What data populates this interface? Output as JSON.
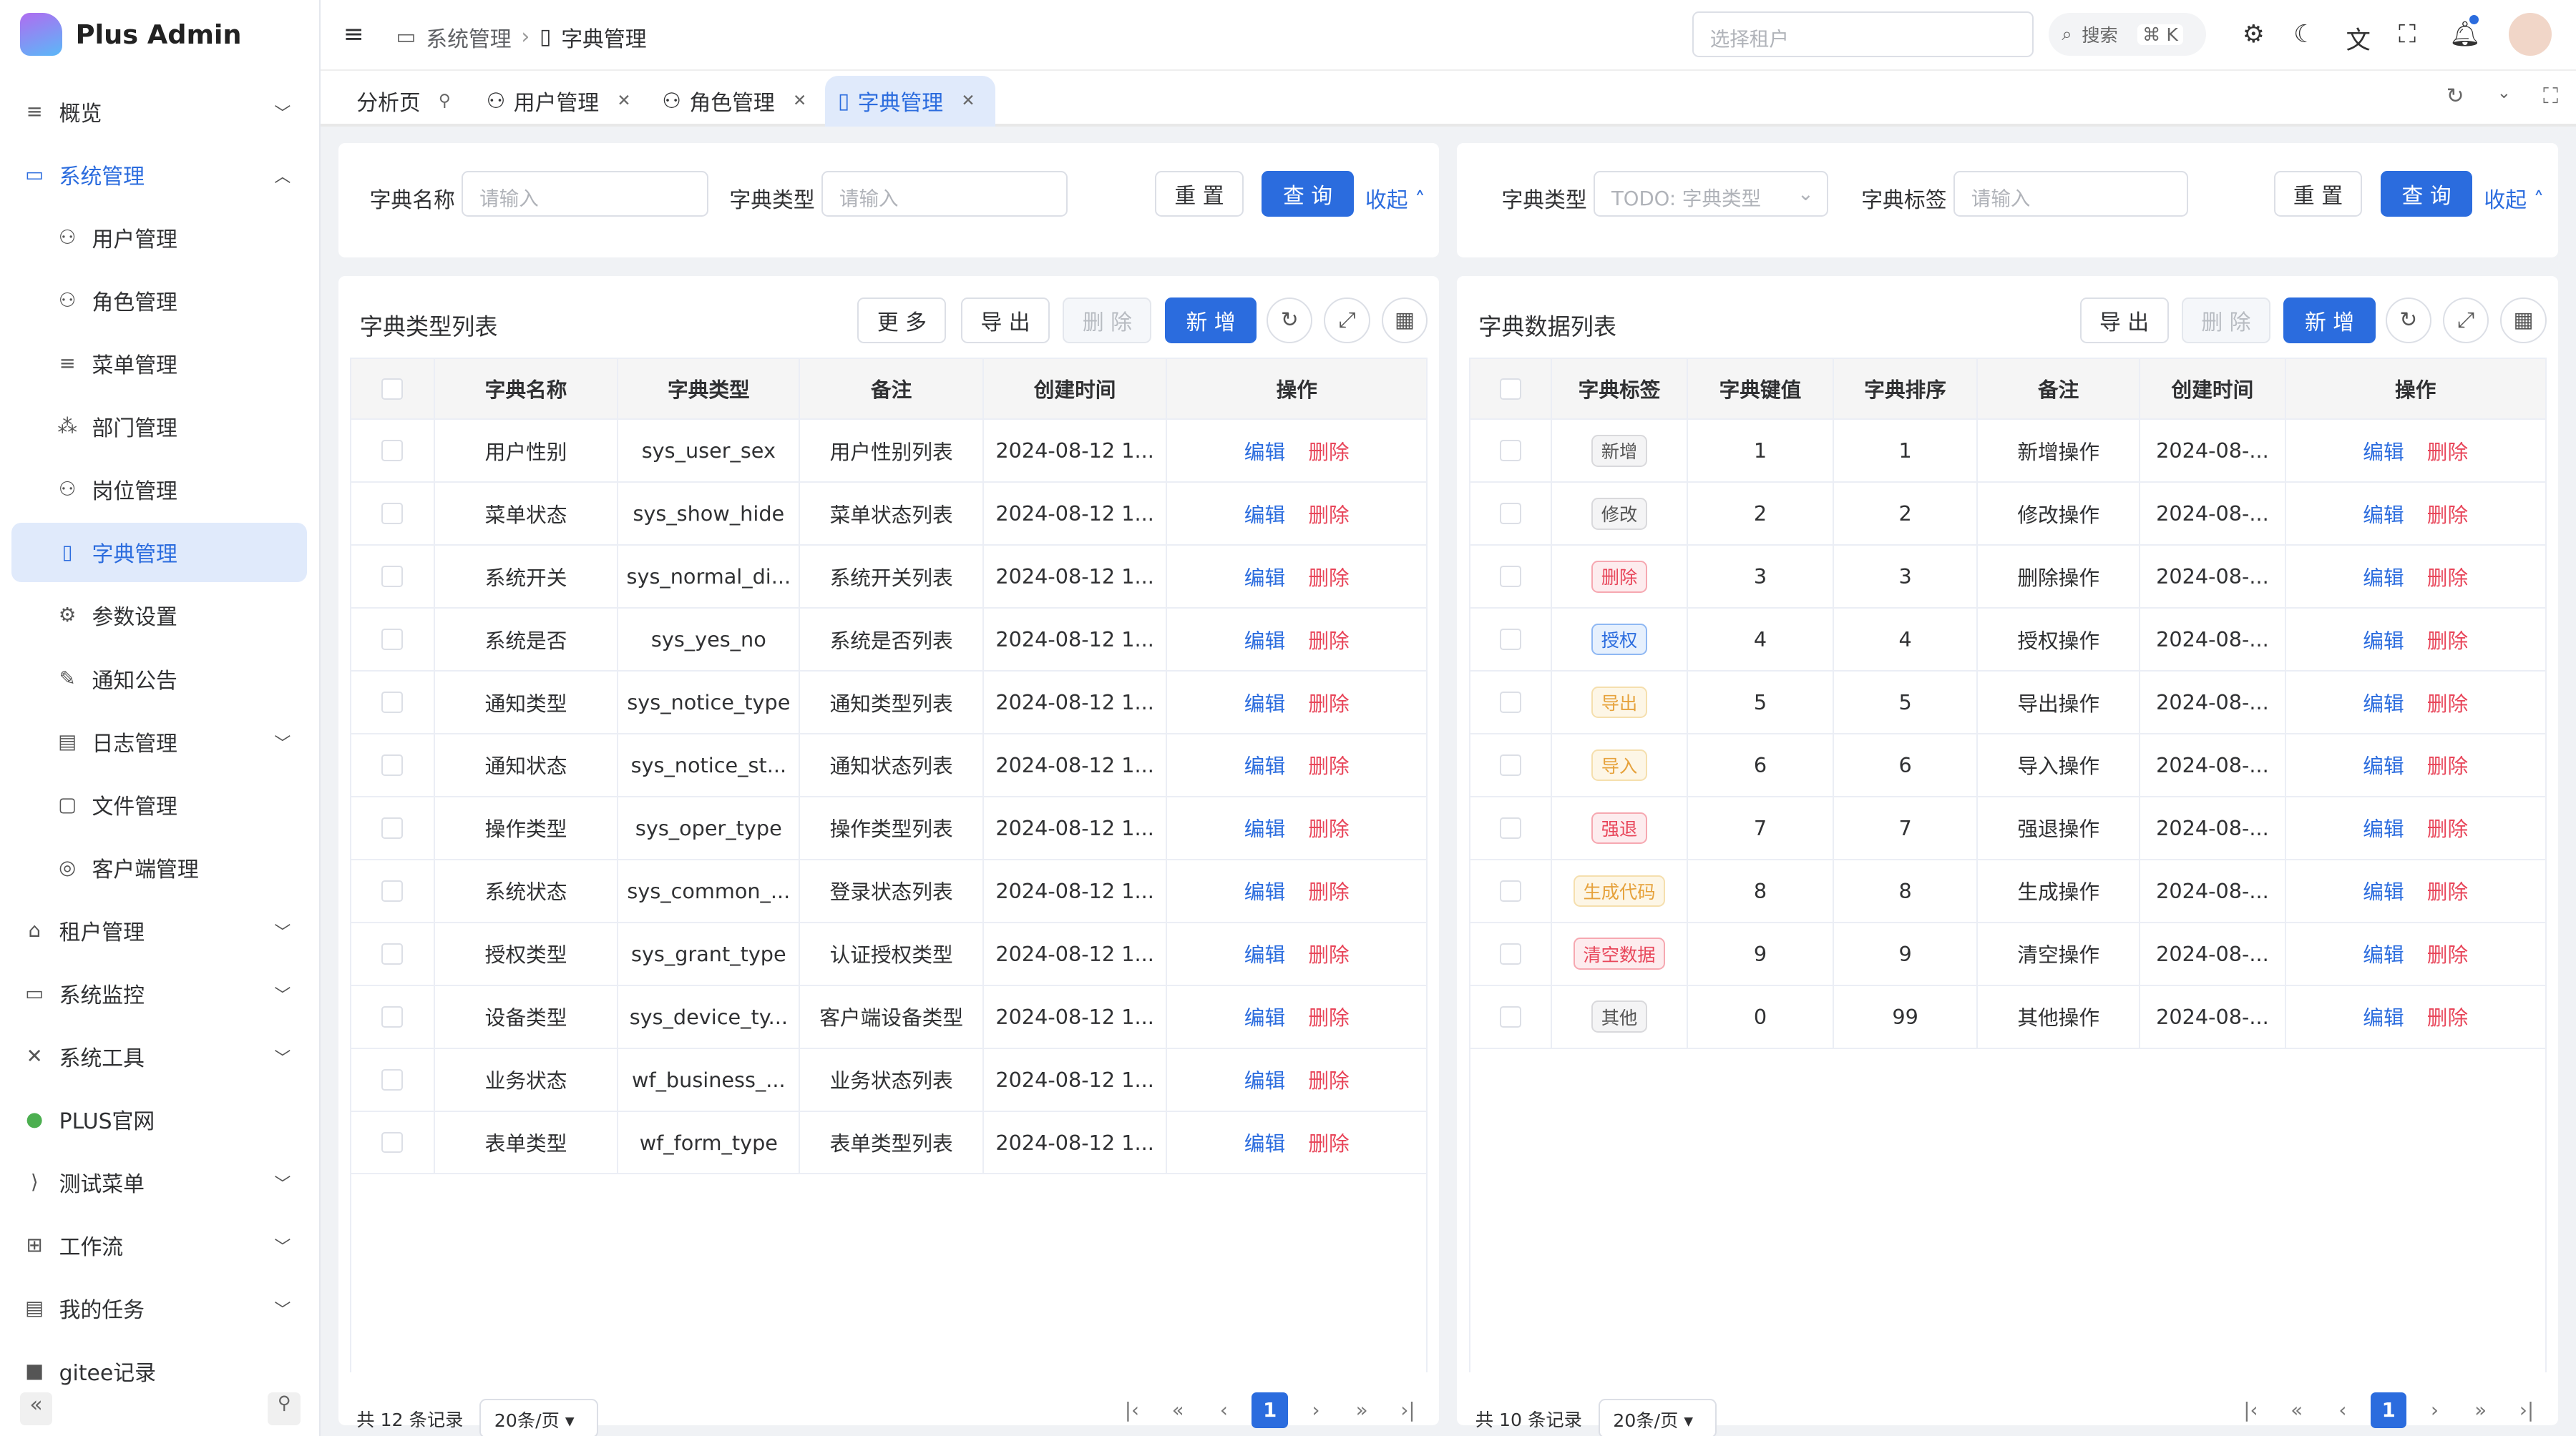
{
  "app": {
    "name": "Plus Admin"
  },
  "sidebar": {
    "items": [
      {
        "label": "概览",
        "icon": "list-icon",
        "chevron": "down"
      },
      {
        "label": "系统管理",
        "icon": "monitor-icon",
        "chevron": "up",
        "open": true
      },
      {
        "label": "用户管理",
        "icon": "user-icon",
        "sub": true
      },
      {
        "label": "角色管理",
        "icon": "role-icon",
        "sub": true
      },
      {
        "label": "菜单管理",
        "icon": "menu-icon",
        "sub": true
      },
      {
        "label": "部门管理",
        "icon": "dept-icon",
        "sub": true
      },
      {
        "label": "岗位管理",
        "icon": "post-icon",
        "sub": true
      },
      {
        "label": "字典管理",
        "icon": "dict-icon",
        "sub": true,
        "active": true
      },
      {
        "label": "参数设置",
        "icon": "settings-icon",
        "sub": true
      },
      {
        "label": "通知公告",
        "icon": "notice-icon",
        "sub": true
      },
      {
        "label": "日志管理",
        "icon": "log-icon",
        "sub": true,
        "chevron": "down"
      },
      {
        "label": "文件管理",
        "icon": "file-icon",
        "sub": true
      },
      {
        "label": "客户端管理",
        "icon": "client-icon",
        "sub": true
      },
      {
        "label": "租户管理",
        "icon": "home-icon",
        "chevron": "down"
      },
      {
        "label": "系统监控",
        "icon": "monitor-icon",
        "chevron": "down"
      },
      {
        "label": "系统工具",
        "icon": "tools-icon",
        "chevron": "down"
      },
      {
        "label": "PLUS官网",
        "icon": "plus-circle-icon"
      },
      {
        "label": "测试菜单",
        "icon": "vscode-icon",
        "chevron": "down"
      },
      {
        "label": "工作流",
        "icon": "workflow-icon",
        "chevron": "down"
      },
      {
        "label": "我的任务",
        "icon": "task-icon",
        "chevron": "down"
      },
      {
        "label": "gitee记录",
        "icon": "gitee-icon"
      }
    ]
  },
  "header": {
    "breadcrumb": [
      "系统管理",
      "字典管理"
    ],
    "tenant_placeholder": "选择租户",
    "search_label": "搜索",
    "search_shortcut": "⌘ K"
  },
  "tabs": [
    {
      "label": "分析页",
      "icon": "pin-icon"
    },
    {
      "label": "用户管理",
      "closable": true
    },
    {
      "label": "角色管理",
      "closable": true
    },
    {
      "label": "字典管理",
      "closable": true,
      "active": true
    }
  ],
  "left": {
    "search": {
      "name_label": "字典名称",
      "name_placeholder": "请输入",
      "type_label": "字典类型",
      "type_placeholder": "请输入",
      "reset": "重 置",
      "query": "查 询",
      "collapse": "收起"
    },
    "title": "字典类型列表",
    "toolbar": {
      "more": "更 多",
      "export": "导 出",
      "delete": "删 除",
      "add": "新 增"
    },
    "columns": [
      "字典名称",
      "字典类型",
      "备注",
      "创建时间",
      "操作"
    ],
    "rows": [
      [
        "用户性别",
        "sys_user_sex",
        "用户性别列表",
        "2024-08-12 1..."
      ],
      [
        "菜单状态",
        "sys_show_hide",
        "菜单状态列表",
        "2024-08-12 1..."
      ],
      [
        "系统开关",
        "sys_normal_di...",
        "系统开关列表",
        "2024-08-12 1..."
      ],
      [
        "系统是否",
        "sys_yes_no",
        "系统是否列表",
        "2024-08-12 1..."
      ],
      [
        "通知类型",
        "sys_notice_type",
        "通知类型列表",
        "2024-08-12 1..."
      ],
      [
        "通知状态",
        "sys_notice_st...",
        "通知状态列表",
        "2024-08-12 1..."
      ],
      [
        "操作类型",
        "sys_oper_type",
        "操作类型列表",
        "2024-08-12 1..."
      ],
      [
        "系统状态",
        "sys_common_...",
        "登录状态列表",
        "2024-08-12 1..."
      ],
      [
        "授权类型",
        "sys_grant_type",
        "认证授权类型",
        "2024-08-12 1..."
      ],
      [
        "设备类型",
        "sys_device_ty...",
        "客户端设备类型",
        "2024-08-12 1..."
      ],
      [
        "业务状态",
        "wf_business_...",
        "业务状态列表",
        "2024-08-12 1..."
      ],
      [
        "表单类型",
        "wf_form_type",
        "表单类型列表",
        "2024-08-12 1..."
      ]
    ],
    "edit": "编辑",
    "remove": "删除",
    "pagination": {
      "total": "共 12 条记录",
      "size": "20条/页",
      "page": "1"
    }
  },
  "right": {
    "search": {
      "type_label": "字典类型",
      "type_value": "TODO: 字典类型",
      "label_label": "字典标签",
      "label_placeholder": "请输入",
      "reset": "重 置",
      "query": "查 询",
      "collapse": "收起"
    },
    "title": "字典数据列表",
    "toolbar": {
      "export": "导 出",
      "delete": "删 除",
      "add": "新 增"
    },
    "columns": [
      "字典标签",
      "字典键值",
      "字典排序",
      "备注",
      "创建时间",
      "操作"
    ],
    "rows": [
      {
        "tag": "新增",
        "tone": "default",
        "value": "1",
        "sort": "1",
        "remark": "新增操作",
        "time": "2024-08-..."
      },
      {
        "tag": "修改",
        "tone": "default",
        "value": "2",
        "sort": "2",
        "remark": "修改操作",
        "time": "2024-08-..."
      },
      {
        "tag": "删除",
        "tone": "danger",
        "value": "3",
        "sort": "3",
        "remark": "删除操作",
        "time": "2024-08-..."
      },
      {
        "tag": "授权",
        "tone": "primary",
        "value": "4",
        "sort": "4",
        "remark": "授权操作",
        "time": "2024-08-..."
      },
      {
        "tag": "导出",
        "tone": "warning",
        "value": "5",
        "sort": "5",
        "remark": "导出操作",
        "time": "2024-08-..."
      },
      {
        "tag": "导入",
        "tone": "warning",
        "value": "6",
        "sort": "6",
        "remark": "导入操作",
        "time": "2024-08-..."
      },
      {
        "tag": "强退",
        "tone": "danger",
        "value": "7",
        "sort": "7",
        "remark": "强退操作",
        "time": "2024-08-..."
      },
      {
        "tag": "生成代码",
        "tone": "warning",
        "value": "8",
        "sort": "8",
        "remark": "生成操作",
        "time": "2024-08-..."
      },
      {
        "tag": "清空数据",
        "tone": "danger",
        "value": "9",
        "sort": "9",
        "remark": "清空操作",
        "time": "2024-08-..."
      },
      {
        "tag": "其他",
        "tone": "default",
        "value": "0",
        "sort": "99",
        "remark": "其他操作",
        "time": "2024-08-..."
      }
    ],
    "edit": "编辑",
    "remove": "删除",
    "pagination": {
      "total": "共 10 条记录",
      "size": "20条/页",
      "page": "1"
    }
  },
  "colors": {
    "primary": "#2b6cde",
    "danger": "#e8465a",
    "warning": "#e6a23c",
    "active_bg": "#e0eafb"
  }
}
